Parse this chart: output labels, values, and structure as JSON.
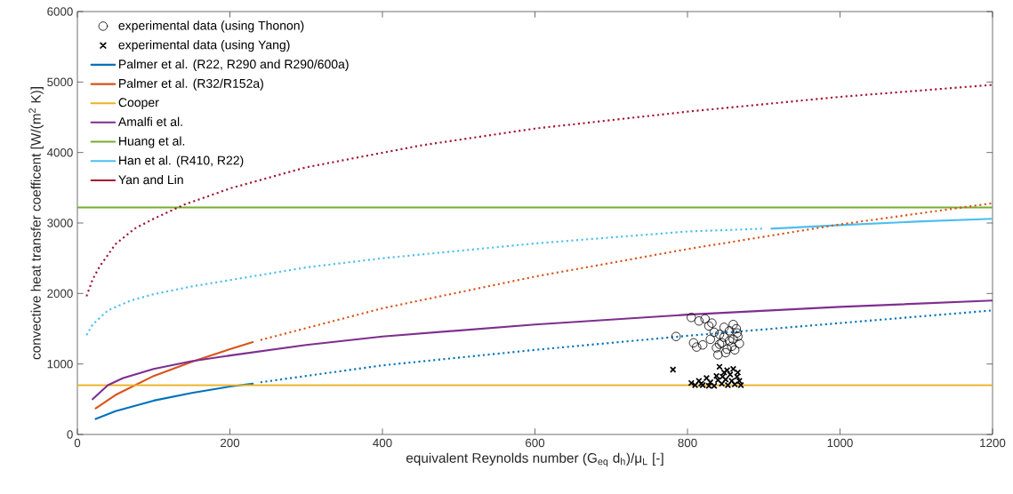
{
  "chart_data": {
    "type": "line",
    "xlabel": "equivalent Reynolds number (G$_{eq}$ d$_{h}$)/μ$_{L}$ [-]",
    "ylabel": "convective heat transfer coefficent [W/(m$^{2}$ K)]",
    "xlim": [
      0,
      1200
    ],
    "ylim": [
      0,
      6000
    ],
    "xticks": [
      0,
      200,
      400,
      600,
      800,
      1000,
      1200
    ],
    "yticks": [
      0,
      1000,
      2000,
      3000,
      4000,
      5000,
      6000
    ],
    "legend": "top left",
    "series": [
      {
        "name": "experimental data (using Thonon)",
        "type": "scatter",
        "marker": "circle",
        "color": "#000000",
        "x": [
          785,
          805,
          815,
          823,
          832,
          828,
          808,
          820,
          812,
          830,
          838,
          842,
          848,
          855,
          860,
          864,
          866,
          868,
          862,
          850,
          840,
          855,
          845,
          858,
          835,
          848,
          865,
          852,
          842,
          860
        ],
        "values": [
          1390,
          1660,
          1610,
          1640,
          1580,
          1540,
          1300,
          1270,
          1240,
          1350,
          1230,
          1420,
          1520,
          1470,
          1560,
          1500,
          1390,
          1290,
          1200,
          1160,
          1130,
          1330,
          1300,
          1250,
          1450,
          1380,
          1440,
          1210,
          1280,
          1350
        ]
      },
      {
        "name": "experimental data (using Yang)",
        "type": "scatter",
        "marker": "cross",
        "color": "#000000",
        "x": [
          781,
          805,
          810,
          815,
          820,
          825,
          830,
          835,
          838,
          842,
          845,
          848,
          850,
          853,
          856,
          858,
          860,
          862,
          865,
          868,
          870,
          828,
          840,
          852,
          866,
          818,
          846
        ],
        "values": [
          920,
          730,
          700,
          760,
          700,
          800,
          740,
          690,
          830,
          960,
          720,
          880,
          780,
          700,
          850,
          760,
          930,
          710,
          820,
          760,
          700,
          690,
          770,
          910,
          880,
          720,
          820
        ]
      },
      {
        "name": "Palmer et al. (R22, R290 and R290/600a)",
        "color": "#0072bd",
        "line_style": "solid",
        "x": [
          24,
          50,
          100,
          150,
          200,
          230
        ],
        "values": [
          220,
          330,
          480,
          590,
          680,
          720
        ]
      },
      {
        "name": "Palmer et al. (R32/R152a)",
        "color": "#d95319",
        "line_style": "solid",
        "x": [
          24,
          50,
          100,
          150,
          200,
          230
        ],
        "values": [
          370,
          560,
          830,
          1030,
          1210,
          1310
        ]
      },
      {
        "name": "Cooper",
        "color": "#edb120",
        "line_style": "solid",
        "x": [
          0,
          1200
        ],
        "values": [
          700,
          700
        ]
      },
      {
        "name": "Amalfi et al.",
        "color": "#7e2f8e",
        "line_style": "solid",
        "x": [
          20,
          40,
          60,
          100,
          150,
          200,
          300,
          400,
          600,
          800,
          1000,
          1200
        ],
        "values": [
          500,
          700,
          800,
          930,
          1040,
          1120,
          1270,
          1390,
          1560,
          1700,
          1810,
          1900
        ]
      },
      {
        "name": "Huang et al.",
        "color": "#77ac30",
        "line_style": "solid",
        "x": [
          0,
          1200
        ],
        "values": [
          3220,
          3220
        ]
      },
      {
        "name": "Han et al. (R410, R22)",
        "color": "#4dbeee",
        "line_style": "solid",
        "x": [
          910,
          1000,
          1100,
          1200
        ],
        "values": [
          2920,
          2970,
          3020,
          3060
        ]
      },
      {
        "name": "Yan and Lin",
        "color": "#a2142f",
        "line_style": "dotted",
        "x": [
          12,
          20,
          29,
          50,
          75,
          100,
          140,
          200,
          300,
          450,
          600,
          800,
          1000,
          1200
        ],
        "values": [
          1960,
          2200,
          2380,
          2700,
          2920,
          3060,
          3260,
          3490,
          3790,
          4100,
          4340,
          4580,
          4790,
          4960
        ]
      },
      {
        "color": "#0072bd",
        "line_style": "dotted",
        "x": [
          240,
          400,
          600,
          800,
          1000,
          1200
        ],
        "values": [
          740,
          980,
          1200,
          1400,
          1580,
          1760
        ]
      },
      {
        "color": "#d95319",
        "line_style": "dotted",
        "x": [
          240,
          400,
          600,
          800,
          1000,
          1200
        ],
        "values": [
          1340,
          1790,
          2240,
          2630,
          2980,
          3280
        ]
      },
      {
        "color": "#4dbeee",
        "line_style": "dotted",
        "x": [
          12,
          20,
          40,
          70,
          100,
          150,
          200,
          300,
          400,
          600,
          800,
          900
        ],
        "values": [
          1410,
          1560,
          1760,
          1900,
          1990,
          2100,
          2190,
          2370,
          2500,
          2710,
          2880,
          2920
        ]
      }
    ]
  }
}
